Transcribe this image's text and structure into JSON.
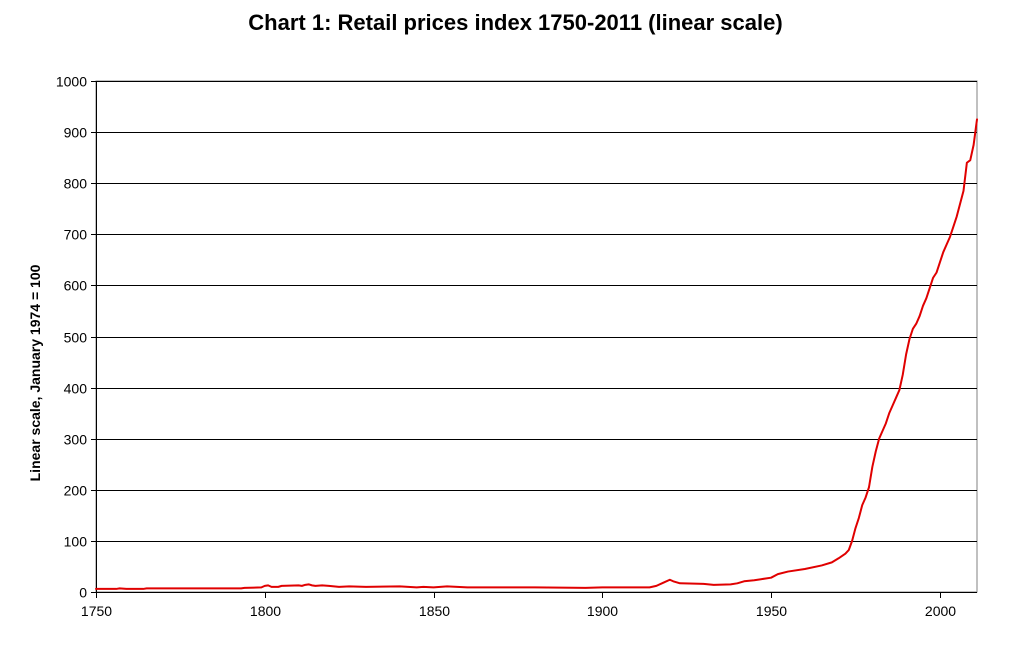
{
  "chart_data": {
    "type": "line",
    "title": "Chart 1: Retail prices index 1750-2011 (linear scale)",
    "xlabel": "",
    "ylabel": "Linear scale, January 1974 = 100",
    "xlim": [
      1750,
      2011
    ],
    "ylim": [
      0,
      1000
    ],
    "x_ticks": [
      1750,
      1800,
      1850,
      1900,
      1950,
      2000
    ],
    "y_ticks": [
      0,
      100,
      200,
      300,
      400,
      500,
      600,
      700,
      800,
      900,
      1000
    ],
    "grid": "horizontal",
    "series": [
      {
        "name": "Retail prices index",
        "color": "#e00000",
        "points": [
          [
            1750,
            6
          ],
          [
            1756,
            6
          ],
          [
            1757,
            7
          ],
          [
            1759,
            6
          ],
          [
            1764,
            6
          ],
          [
            1765,
            7
          ],
          [
            1793,
            7
          ],
          [
            1794,
            8
          ],
          [
            1799,
            9
          ],
          [
            1800,
            12
          ],
          [
            1801,
            13
          ],
          [
            1802,
            10
          ],
          [
            1804,
            10
          ],
          [
            1805,
            12
          ],
          [
            1810,
            13
          ],
          [
            1811,
            12
          ],
          [
            1812,
            14
          ],
          [
            1813,
            15
          ],
          [
            1814,
            13
          ],
          [
            1815,
            12
          ],
          [
            1817,
            13
          ],
          [
            1819,
            12
          ],
          [
            1822,
            10
          ],
          [
            1825,
            11
          ],
          [
            1830,
            10
          ],
          [
            1840,
            11
          ],
          [
            1845,
            9
          ],
          [
            1847,
            10
          ],
          [
            1850,
            9
          ],
          [
            1854,
            11
          ],
          [
            1857,
            10
          ],
          [
            1860,
            9
          ],
          [
            1870,
            9
          ],
          [
            1880,
            9
          ],
          [
            1895,
            8
          ],
          [
            1900,
            9
          ],
          [
            1914,
            9
          ],
          [
            1916,
            12
          ],
          [
            1918,
            18
          ],
          [
            1920,
            24
          ],
          [
            1921,
            21
          ],
          [
            1923,
            17
          ],
          [
            1930,
            16
          ],
          [
            1933,
            14
          ],
          [
            1938,
            15
          ],
          [
            1940,
            17
          ],
          [
            1942,
            21
          ],
          [
            1945,
            23
          ],
          [
            1947,
            25
          ],
          [
            1950,
            28
          ],
          [
            1952,
            35
          ],
          [
            1955,
            40
          ],
          [
            1960,
            45
          ],
          [
            1965,
            52
          ],
          [
            1968,
            58
          ],
          [
            1970,
            66
          ],
          [
            1972,
            75
          ],
          [
            1973,
            82
          ],
          [
            1974,
            100
          ],
          [
            1975,
            125
          ],
          [
            1976,
            145
          ],
          [
            1977,
            170
          ],
          [
            1978,
            185
          ],
          [
            1979,
            205
          ],
          [
            1980,
            245
          ],
          [
            1981,
            275
          ],
          [
            1982,
            300
          ],
          [
            1983,
            315
          ],
          [
            1984,
            330
          ],
          [
            1985,
            350
          ],
          [
            1986,
            365
          ],
          [
            1987,
            380
          ],
          [
            1988,
            395
          ],
          [
            1989,
            425
          ],
          [
            1990,
            465
          ],
          [
            1991,
            495
          ],
          [
            1992,
            515
          ],
          [
            1993,
            525
          ],
          [
            1994,
            540
          ],
          [
            1995,
            560
          ],
          [
            1996,
            575
          ],
          [
            1997,
            595
          ],
          [
            1998,
            615
          ],
          [
            1999,
            625
          ],
          [
            2000,
            645
          ],
          [
            2001,
            665
          ],
          [
            2002,
            680
          ],
          [
            2003,
            695
          ],
          [
            2004,
            715
          ],
          [
            2005,
            735
          ],
          [
            2006,
            760
          ],
          [
            2007,
            785
          ],
          [
            2008,
            840
          ],
          [
            2009,
            845
          ],
          [
            2010,
            875
          ],
          [
            2011,
            925
          ]
        ]
      }
    ]
  }
}
